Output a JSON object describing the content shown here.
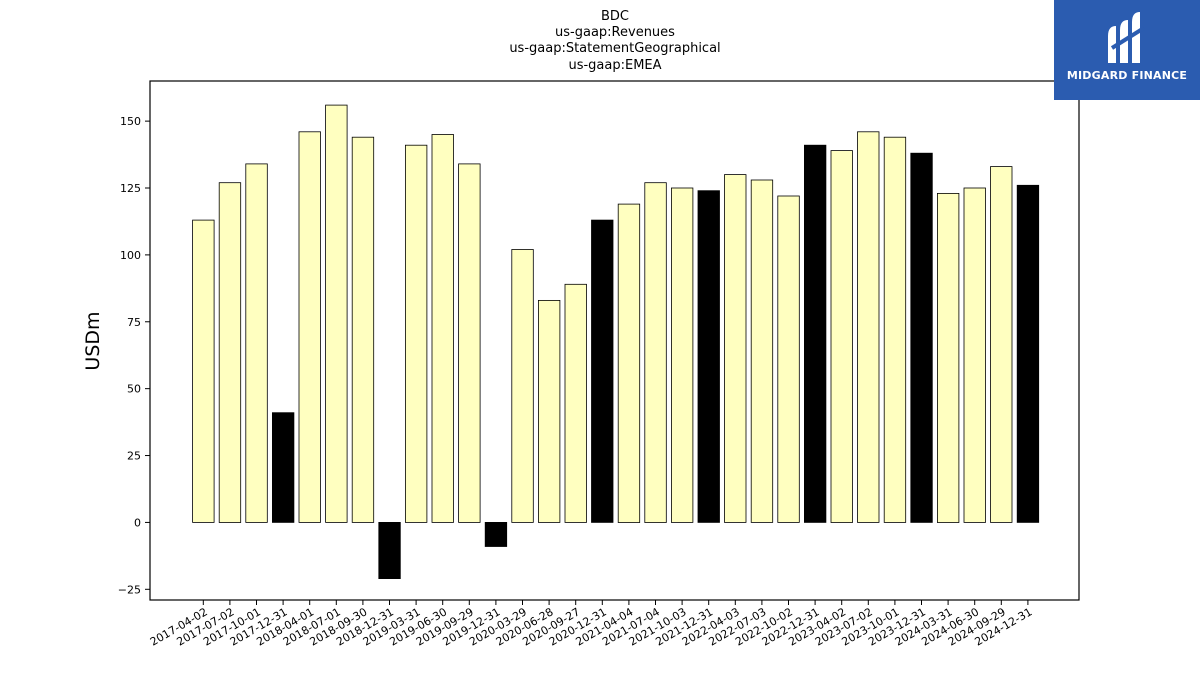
{
  "logo": {
    "text": "MIDGARD FINANCE",
    "background": "#2b5cb0"
  },
  "chart_data": {
    "type": "bar",
    "title_lines": [
      "BDC",
      "us-gaap:Revenues",
      "us-gaap:StatementGeographical",
      "us-gaap:EMEA"
    ],
    "xlabel": "",
    "ylabel": "USDm",
    "ylim": [
      -29,
      165
    ],
    "yticks": [
      -25,
      0,
      25,
      50,
      75,
      100,
      125,
      150
    ],
    "grid": false,
    "colors": {
      "normal": "#ffffc0",
      "highlight": "#000000",
      "edge": "#000000"
    },
    "categories": [
      "2017-04-02",
      "2017-07-02",
      "2017-10-01",
      "2017-12-31",
      "2018-04-01",
      "2018-07-01",
      "2018-09-30",
      "2018-12-31",
      "2019-03-31",
      "2019-06-30",
      "2019-09-29",
      "2019-12-31",
      "2020-03-29",
      "2020-06-28",
      "2020-09-27",
      "2020-12-31",
      "2021-04-04",
      "2021-07-04",
      "2021-10-03",
      "2021-12-31",
      "2022-04-03",
      "2022-07-03",
      "2022-10-02",
      "2022-12-31",
      "2023-04-02",
      "2023-07-02",
      "2023-10-01",
      "2023-12-31",
      "2024-03-31",
      "2024-06-30",
      "2024-09-29",
      "2024-12-31"
    ],
    "values": [
      113,
      127,
      134,
      41,
      146,
      156,
      144,
      -21,
      141,
      145,
      134,
      -9,
      102,
      83,
      89,
      113,
      119,
      127,
      125,
      124,
      130,
      128,
      122,
      141,
      139,
      146,
      144,
      138,
      123,
      125,
      133,
      126
    ],
    "highlight": [
      false,
      false,
      false,
      true,
      false,
      false,
      false,
      true,
      false,
      false,
      false,
      true,
      false,
      false,
      false,
      true,
      false,
      false,
      false,
      true,
      false,
      false,
      false,
      true,
      false,
      false,
      false,
      true,
      false,
      false,
      false,
      true
    ]
  }
}
